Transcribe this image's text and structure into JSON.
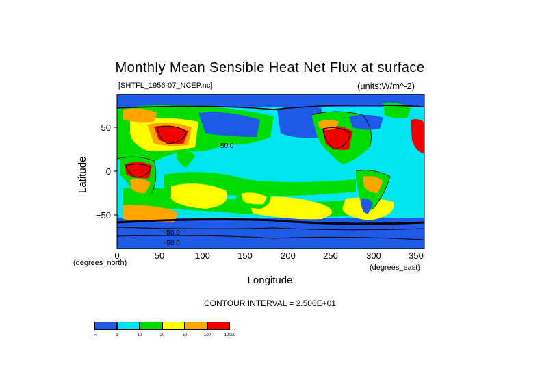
{
  "map": {
    "title": "Monthly Mean Sensible Heat Net Flux at surface",
    "file_label": "[SHTFL_1956-07_NCEP.nc]",
    "units_label": "(units:W/m^-2)",
    "xlabel": "Longitude",
    "ylabel": "Latitude",
    "x_unit": "(degrees_east)",
    "y_unit": "(degrees_north)",
    "x_ticks": [
      "0",
      "50",
      "100",
      "150",
      "200",
      "250",
      "300",
      "350"
    ],
    "y_ticks": [
      "50",
      "0",
      "−50"
    ],
    "contour_interval": "CONTOUR INTERVAL = 2.500E+01",
    "contour_labels": [
      "-50.0",
      "-50.0",
      "50.0"
    ],
    "colors": {
      "c1": "#1e5ae6",
      "c2": "#00e6f0",
      "c3": "#00dc00",
      "c4": "#ffff00",
      "c5": "#ffa500",
      "c6": "#f00000"
    },
    "legend": {
      "colors": [
        "#1e5ae6",
        "#00e6f0",
        "#00dc00",
        "#ffff00",
        "#ffa500",
        "#f00000"
      ],
      "labels": [
        "-∞",
        "1",
        "10",
        "20",
        "50",
        "100",
        "10000"
      ]
    }
  }
}
